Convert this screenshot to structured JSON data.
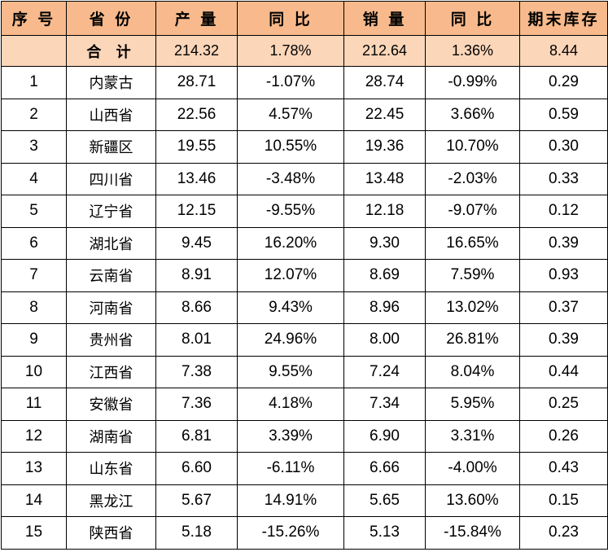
{
  "table": {
    "headers": [
      "序 号",
      "省 份",
      "产 量",
      "同 比",
      "销 量",
      "同 比",
      "期末库存"
    ],
    "total": {
      "no": "",
      "name": "合 计",
      "production": "214.32",
      "production_yoy": "1.78%",
      "sales": "212.64",
      "sales_yoy": "1.36%",
      "inventory": "8.44"
    },
    "rows": [
      {
        "no": "1",
        "name": "内蒙古",
        "production": "28.71",
        "production_yoy": "-1.07%",
        "sales": "28.74",
        "sales_yoy": "-0.99%",
        "inventory": "0.29"
      },
      {
        "no": "2",
        "name": "山西省",
        "production": "22.56",
        "production_yoy": "4.57%",
        "sales": "22.45",
        "sales_yoy": "3.66%",
        "inventory": "0.59"
      },
      {
        "no": "3",
        "name": "新疆区",
        "production": "19.55",
        "production_yoy": "10.55%",
        "sales": "19.36",
        "sales_yoy": "10.70%",
        "inventory": "0.30"
      },
      {
        "no": "4",
        "name": "四川省",
        "production": "13.46",
        "production_yoy": "-3.48%",
        "sales": "13.48",
        "sales_yoy": "-2.03%",
        "inventory": "0.33"
      },
      {
        "no": "5",
        "name": "辽宁省",
        "production": "12.15",
        "production_yoy": "-9.55%",
        "sales": "12.18",
        "sales_yoy": "-9.07%",
        "inventory": "0.12"
      },
      {
        "no": "6",
        "name": "湖北省",
        "production": "9.45",
        "production_yoy": "16.20%",
        "sales": "9.30",
        "sales_yoy": "16.65%",
        "inventory": "0.39"
      },
      {
        "no": "7",
        "name": "云南省",
        "production": "8.91",
        "production_yoy": "12.07%",
        "sales": "8.69",
        "sales_yoy": "7.59%",
        "inventory": "0.93"
      },
      {
        "no": "8",
        "name": "河南省",
        "production": "8.66",
        "production_yoy": "9.43%",
        "sales": "8.96",
        "sales_yoy": "13.02%",
        "inventory": "0.37"
      },
      {
        "no": "9",
        "name": "贵州省",
        "production": "8.01",
        "production_yoy": "24.96%",
        "sales": "8.00",
        "sales_yoy": "26.81%",
        "inventory": "0.39"
      },
      {
        "no": "10",
        "name": "江西省",
        "production": "7.38",
        "production_yoy": "9.55%",
        "sales": "7.24",
        "sales_yoy": "8.04%",
        "inventory": "0.44"
      },
      {
        "no": "11",
        "name": "安徽省",
        "production": "7.36",
        "production_yoy": "4.18%",
        "sales": "7.34",
        "sales_yoy": "5.95%",
        "inventory": "0.25"
      },
      {
        "no": "12",
        "name": "湖南省",
        "production": "6.81",
        "production_yoy": "3.39%",
        "sales": "6.90",
        "sales_yoy": "3.31%",
        "inventory": "0.26"
      },
      {
        "no": "13",
        "name": "山东省",
        "production": "6.60",
        "production_yoy": "-6.11%",
        "sales": "6.66",
        "sales_yoy": "-4.00%",
        "inventory": "0.43"
      },
      {
        "no": "14",
        "name": "黑龙江",
        "production": "5.67",
        "production_yoy": "14.91%",
        "sales": "5.65",
        "sales_yoy": "13.60%",
        "inventory": "0.15"
      },
      {
        "no": "15",
        "name": "陕西省",
        "production": "5.18",
        "production_yoy": "-15.26%",
        "sales": "5.13",
        "sales_yoy": "-15.84%",
        "inventory": "0.23"
      }
    ]
  },
  "colors": {
    "header_bg": "#f8ba8c",
    "total_bg": "#fbd6b9",
    "border": "#000000"
  }
}
